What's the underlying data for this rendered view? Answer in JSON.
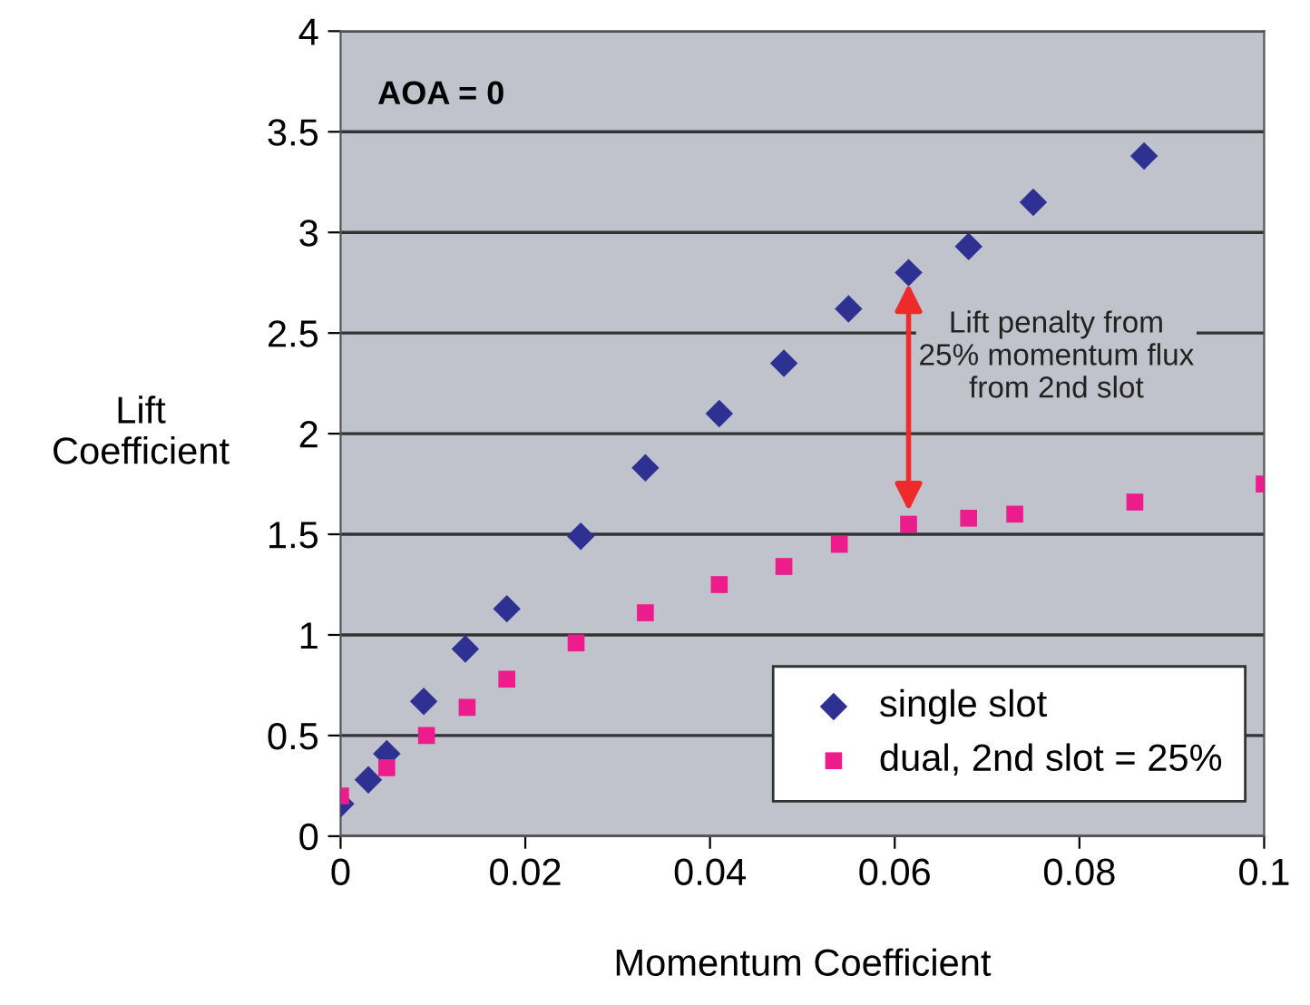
{
  "chart_data": {
    "type": "scatter",
    "xlabel": "Momentum Coefficient",
    "ylabel": "Lift\nCoefficient",
    "xlim": [
      0,
      0.1
    ],
    "xticks": [
      0,
      0.02,
      0.04,
      0.06,
      0.08,
      0.1
    ],
    "ylim": [
      0,
      4
    ],
    "yticks": [
      0,
      0.5,
      1,
      1.5,
      2,
      2.5,
      3,
      3.5,
      4
    ],
    "grid": "y",
    "legend": "bottom right",
    "series": [
      {
        "name": "single slot",
        "color": "#2e3192",
        "marker": "diamond",
        "x": [
          0,
          0.003,
          0.005,
          0.009,
          0.0135,
          0.018,
          0.026,
          0.033,
          0.041,
          0.048,
          0.055,
          0.0615,
          0.068,
          0.075,
          0.087
        ],
        "values": [
          0.16,
          0.28,
          0.41,
          0.67,
          0.93,
          1.13,
          1.49,
          1.83,
          2.1,
          2.35,
          2.62,
          2.8,
          2.93,
          3.15,
          3.38
        ]
      },
      {
        "name": "dual, 2nd slot = 25%",
        "color": "#ec1c8c",
        "marker": "square",
        "x": [
          0,
          0.005,
          0.0093,
          0.0137,
          0.018,
          0.0255,
          0.033,
          0.041,
          0.048,
          0.054,
          0.0615,
          0.068,
          0.073,
          0.086,
          0.1
        ],
        "values": [
          0.2,
          0.34,
          0.5,
          0.64,
          0.78,
          0.96,
          1.11,
          1.25,
          1.34,
          1.45,
          1.55,
          1.58,
          1.6,
          1.66,
          1.75
        ]
      }
    ],
    "annotations": [
      "AOA = 0",
      {
        "text": "Lift penalty from\n25% momentum flux\nfrom 2nd slot",
        "x": 0.0615,
        "y": 2.8
      }
    ]
  }
}
